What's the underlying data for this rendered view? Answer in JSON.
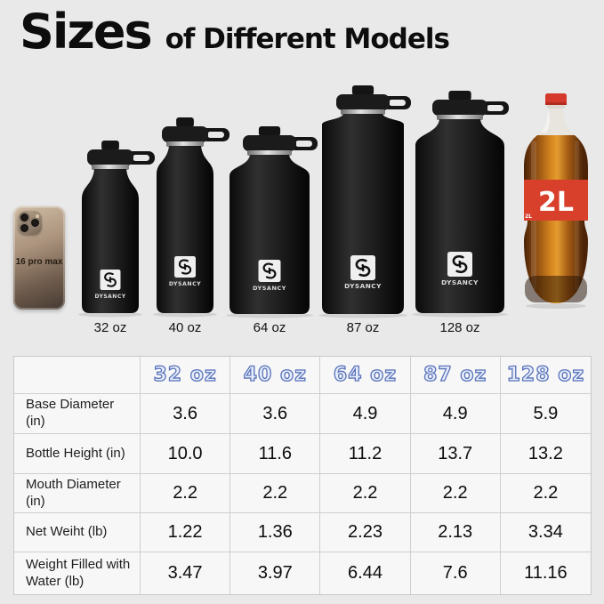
{
  "title": {
    "main": "Sizes",
    "sub": "of Different Models"
  },
  "brand": "DYSANCY",
  "phone": {
    "label": "16 pro max"
  },
  "coke": {
    "label": "2L"
  },
  "bottles": [
    {
      "label": "32 oz"
    },
    {
      "label": "40 oz"
    },
    {
      "label": "64 oz"
    },
    {
      "label": "87 oz"
    },
    {
      "label": "128 oz"
    }
  ],
  "table": {
    "col_headers": [
      "",
      "32 oz",
      "40 oz",
      "64 oz",
      "87 oz",
      "128 oz"
    ],
    "rows": [
      {
        "label": "Base Diameter (in)",
        "values": [
          "3.6",
          "3.6",
          "4.9",
          "4.9",
          "5.9"
        ]
      },
      {
        "label": "Bottle Height (in)",
        "values": [
          "10.0",
          "11.6",
          "11.2",
          "13.7",
          "13.2"
        ]
      },
      {
        "label": "Mouth Diameter (in)",
        "values": [
          "2.2",
          "2.2",
          "2.2",
          "2.2",
          "2.2"
        ]
      },
      {
        "label": "Net Weiht (lb)",
        "values": [
          "1.22",
          "1.36",
          "2.23",
          "2.13",
          "3.34"
        ]
      },
      {
        "label": "Weight Filled with Water (lb)",
        "values": [
          "3.47",
          "3.97",
          "6.44",
          "7.6",
          "11.16"
        ]
      }
    ]
  },
  "colors": {
    "background": "#e9e9e9",
    "header_text_fill": "#e8eefc",
    "header_text_outline": "#5a74ba",
    "label_red": "#d8402c",
    "cap_red": "#d5392b",
    "bottle_black": "#1a1a1a"
  }
}
